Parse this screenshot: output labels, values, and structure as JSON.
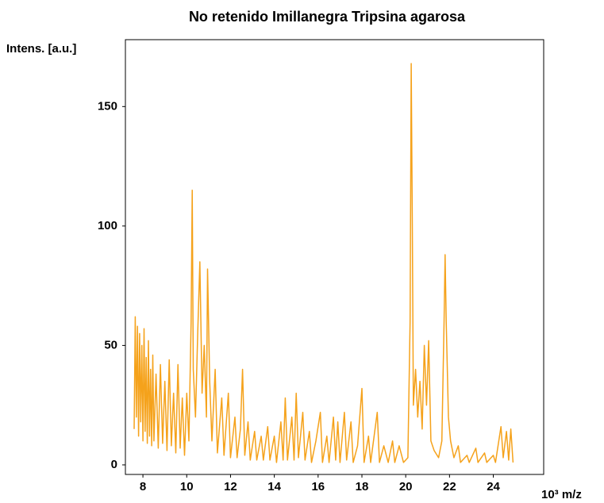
{
  "chart_data": {
    "type": "line",
    "title": "No retenido Imillanegra Tripsina agarosa",
    "ylabel": "Intens. [a.u.]",
    "xlabel": "10³ m/z",
    "xlim": [
      7.2,
      26.3
    ],
    "ylim": [
      -4,
      178
    ],
    "xticks": [
      8,
      10,
      12,
      14,
      16,
      18,
      20,
      22,
      24
    ],
    "yticks": [
      0,
      50,
      100,
      150
    ],
    "series": [
      {
        "color": "#f5a21b",
        "x": [
          7.6,
          7.65,
          7.7,
          7.75,
          7.8,
          7.85,
          7.9,
          7.95,
          8.0,
          8.05,
          8.1,
          8.15,
          8.2,
          8.25,
          8.3,
          8.35,
          8.4,
          8.45,
          8.5,
          8.6,
          8.7,
          8.8,
          8.9,
          9.0,
          9.1,
          9.2,
          9.3,
          9.4,
          9.5,
          9.6,
          9.7,
          9.8,
          9.9,
          10.0,
          10.1,
          10.2,
          10.25,
          10.3,
          10.4,
          10.5,
          10.6,
          10.7,
          10.8,
          10.9,
          10.95,
          11.05,
          11.15,
          11.3,
          11.4,
          11.6,
          11.7,
          11.9,
          12.0,
          12.2,
          12.3,
          12.45,
          12.55,
          12.65,
          12.8,
          12.9,
          13.1,
          13.2,
          13.4,
          13.5,
          13.7,
          13.8,
          14.0,
          14.1,
          14.3,
          14.4,
          14.5,
          14.6,
          14.8,
          14.9,
          15.0,
          15.1,
          15.3,
          15.4,
          15.6,
          15.7,
          15.9,
          16.1,
          16.2,
          16.4,
          16.5,
          16.7,
          16.8,
          16.9,
          17.0,
          17.2,
          17.3,
          17.5,
          17.6,
          17.8,
          18.0,
          18.1,
          18.3,
          18.4,
          18.7,
          18.8,
          19.0,
          19.2,
          19.4,
          19.5,
          19.7,
          19.9,
          20.1,
          20.2,
          20.25,
          20.3,
          20.35,
          20.45,
          20.55,
          20.65,
          20.75,
          20.85,
          20.95,
          21.05,
          21.15,
          21.3,
          21.5,
          21.65,
          21.75,
          21.8,
          21.85,
          21.95,
          22.05,
          22.2,
          22.4,
          22.5,
          22.8,
          22.9,
          23.2,
          23.3,
          23.6,
          23.7,
          24.0,
          24.1,
          24.35,
          24.45,
          24.6,
          24.7,
          24.8,
          24.9
        ],
        "values": [
          15,
          62,
          20,
          58,
          12,
          55,
          18,
          50,
          10,
          57,
          14,
          45,
          9,
          52,
          12,
          40,
          8,
          46,
          10,
          38,
          7,
          42,
          9,
          35,
          6,
          44,
          8,
          30,
          5,
          42,
          7,
          28,
          4,
          30,
          10,
          60,
          115,
          40,
          20,
          55,
          85,
          30,
          50,
          20,
          82,
          35,
          10,
          40,
          5,
          28,
          4,
          30,
          3,
          20,
          3,
          15,
          40,
          4,
          18,
          2,
          14,
          2,
          12,
          2,
          16,
          2,
          12,
          1,
          18,
          2,
          28,
          2,
          20,
          2,
          30,
          3,
          22,
          2,
          14,
          1,
          10,
          22,
          1,
          12,
          1,
          20,
          2,
          18,
          1,
          22,
          2,
          18,
          1,
          8,
          32,
          1,
          12,
          1,
          22,
          1,
          8,
          1,
          10,
          1,
          8,
          1,
          3,
          60,
          168,
          100,
          25,
          40,
          20,
          35,
          15,
          50,
          25,
          52,
          10,
          6,
          3,
          10,
          60,
          88,
          60,
          20,
          10,
          3,
          8,
          1,
          4,
          1,
          7,
          1,
          5,
          1,
          4,
          1,
          16,
          3,
          14,
          2,
          15,
          1
        ]
      }
    ]
  }
}
